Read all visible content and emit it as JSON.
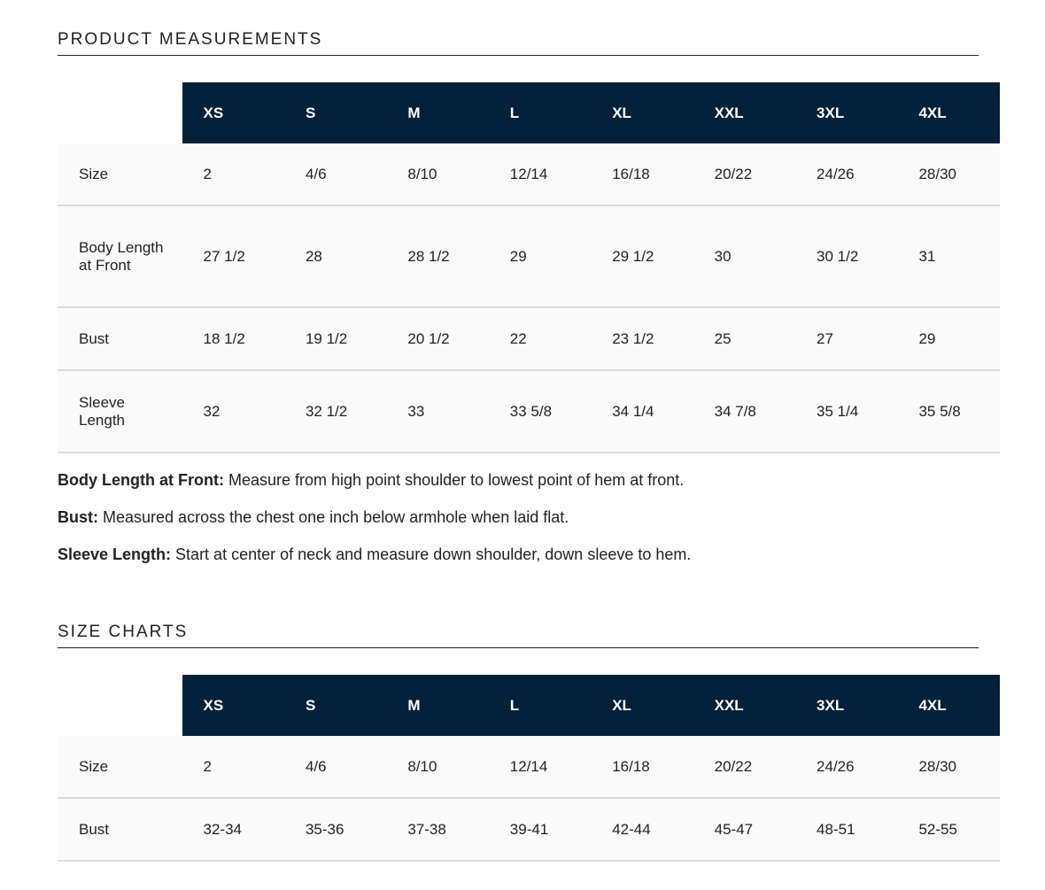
{
  "measurements": {
    "title": "PRODUCT MEASUREMENTS",
    "header": [
      "XS",
      "S",
      "M",
      "L",
      "XL",
      "XXL",
      "3XL",
      "4XL"
    ],
    "rows": [
      [
        "Size",
        "2",
        "4/6",
        "8/10",
        "12/14",
        "16/18",
        "20/22",
        "24/26",
        "28/30"
      ],
      [
        "Body Length at Front",
        "27 1/2",
        "28",
        "28 1/2",
        "29",
        "29 1/2",
        "30",
        "30 1/2",
        "31"
      ],
      [
        "Bust",
        "18 1/2",
        "19 1/2",
        "20 1/2",
        "22",
        "23 1/2",
        "25",
        "27",
        "29"
      ],
      [
        "Sleeve Length",
        "32",
        "32 1/2",
        "33",
        "33 5/8",
        "34 1/4",
        "34 7/8",
        "35 1/4",
        "35 5/8"
      ]
    ],
    "notes": [
      {
        "term": "Body Length at Front:",
        "text": "Measure from high point shoulder to lowest point of hem at front."
      },
      {
        "term": "Bust:",
        "text": "Measured across the chest one inch below armhole when laid flat."
      },
      {
        "term": "Sleeve Length:",
        "text": "Start at center of neck and measure down shoulder, down sleeve to hem."
      }
    ]
  },
  "size_charts": {
    "title": "SIZE CHARTS",
    "header": [
      "XS",
      "S",
      "M",
      "L",
      "XL",
      "XXL",
      "3XL",
      "4XL"
    ],
    "rows": [
      [
        "Size",
        "2",
        "4/6",
        "8/10",
        "12/14",
        "16/18",
        "20/22",
        "24/26",
        "28/30"
      ],
      [
        "Bust",
        "32-34",
        "35-36",
        "37-38",
        "39-41",
        "42-44",
        "45-47",
        "48-51",
        "52-55"
      ]
    ]
  }
}
